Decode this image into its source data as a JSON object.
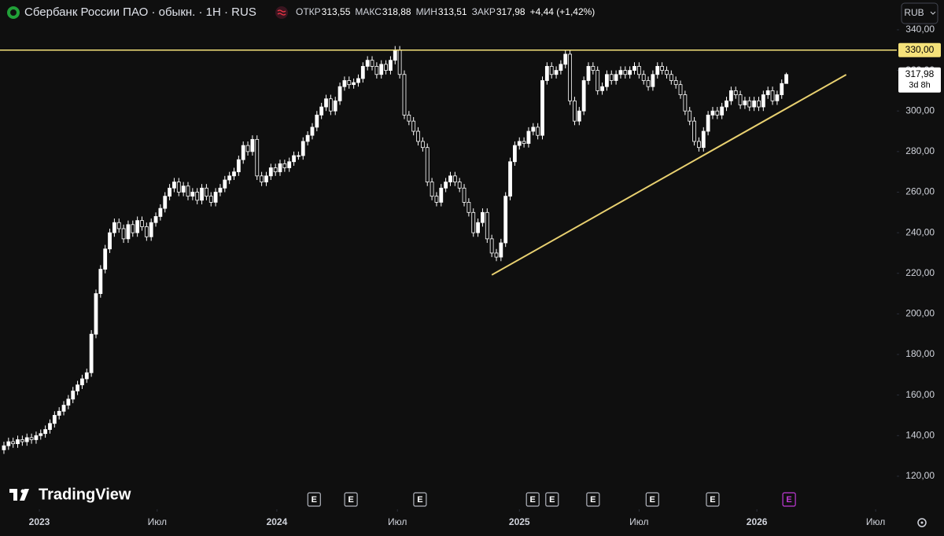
{
  "header": {
    "title": "Сбербанк России ПАО · обыкн. · 1H · RUS",
    "quote": [
      {
        "label": "ОТКР",
        "value": "313,55"
      },
      {
        "label": "МАКС",
        "value": "318,88"
      },
      {
        "label": "МИН",
        "value": "313,51"
      },
      {
        "label": "ЗАКР",
        "value": "317,98"
      }
    ],
    "change": "+4,44 (+1,42%)",
    "currency": "RUB",
    "brand": "TradingView"
  },
  "chart_data": {
    "type": "candlestick",
    "up_color": "#ffffff",
    "down_color": "#0f0f0f",
    "wick_color": "#ffffff",
    "open": [
      133,
      135,
      137,
      136,
      138,
      137,
      139,
      138,
      140,
      141,
      143,
      146,
      150,
      152,
      155,
      158,
      162,
      165,
      168,
      171,
      190,
      210,
      222,
      232,
      240,
      245,
      242,
      237,
      244,
      240,
      246,
      243,
      238,
      245,
      248,
      252,
      258,
      262,
      265,
      260,
      263,
      258,
      260,
      256,
      262,
      258,
      255,
      260,
      262,
      266,
      268,
      270,
      276,
      283,
      280,
      286,
      268,
      265,
      268,
      272,
      270,
      274,
      272,
      275,
      278,
      278,
      285,
      288,
      292,
      298,
      302,
      306,
      300,
      305,
      312,
      315,
      313,
      314,
      316,
      322,
      325,
      322,
      318,
      323,
      320,
      325,
      330,
      318,
      298,
      295,
      290,
      285,
      282,
      265,
      258,
      255,
      262,
      265,
      268,
      265,
      262,
      255,
      250,
      240,
      245,
      250,
      237,
      230,
      228,
      235,
      258,
      275,
      283,
      285,
      284,
      290,
      292,
      288,
      315,
      322,
      318,
      320,
      323,
      328,
      305,
      295,
      300,
      315,
      322,
      320,
      310,
      312,
      318,
      315,
      318,
      320,
      318,
      320,
      322,
      318,
      315,
      312,
      318,
      322,
      320,
      318,
      315,
      313,
      308,
      300,
      295,
      285,
      282,
      290,
      298,
      300,
      298,
      302,
      305,
      310,
      308,
      303,
      305,
      302,
      305,
      302,
      308,
      310,
      305,
      308,
      313.55
    ],
    "high": [
      137,
      139,
      139,
      140,
      140,
      141,
      141,
      142,
      143,
      145,
      148,
      152,
      154,
      157,
      160,
      164,
      167,
      170,
      173,
      192,
      212,
      224,
      234,
      242,
      247,
      247,
      244,
      246,
      246,
      248,
      248,
      245,
      247,
      250,
      254,
      260,
      264,
      267,
      267,
      265,
      265,
      262,
      262,
      264,
      264,
      260,
      262,
      264,
      268,
      270,
      272,
      278,
      285,
      285,
      288,
      288,
      270,
      270,
      274,
      274,
      276,
      276,
      277,
      280,
      280,
      287,
      290,
      294,
      300,
      304,
      308,
      308,
      307,
      314,
      317,
      317,
      316,
      318,
      324,
      327,
      327,
      324,
      325,
      325,
      327,
      332,
      332,
      320,
      300,
      297,
      292,
      287,
      284,
      267,
      260,
      264,
      267,
      270,
      270,
      267,
      264,
      257,
      252,
      247,
      252,
      252,
      239,
      232,
      237,
      260,
      277,
      285,
      287,
      287,
      292,
      294,
      294,
      317,
      324,
      324,
      322,
      325,
      330,
      330,
      307,
      302,
      317,
      324,
      324,
      322,
      314,
      320,
      320,
      320,
      322,
      322,
      322,
      324,
      324,
      320,
      317,
      320,
      324,
      324,
      322,
      320,
      317,
      315,
      310,
      302,
      297,
      287,
      292,
      300,
      302,
      302,
      304,
      307,
      312,
      312,
      310,
      307,
      307,
      307,
      307,
      310,
      312,
      312,
      310,
      315.55,
      318.88
    ],
    "low": [
      131,
      133,
      134,
      134,
      135,
      135,
      136,
      136,
      138,
      139,
      141,
      144,
      148,
      150,
      153,
      156,
      160,
      163,
      166,
      169,
      188,
      208,
      220,
      230,
      238,
      240,
      235,
      235,
      238,
      238,
      241,
      236,
      236,
      243,
      246,
      250,
      256,
      260,
      258,
      258,
      256,
      256,
      254,
      254,
      256,
      253,
      253,
      258,
      260,
      264,
      266,
      268,
      274,
      278,
      278,
      266,
      263,
      263,
      266,
      268,
      268,
      270,
      270,
      273,
      276,
      276,
      283,
      286,
      290,
      296,
      300,
      298,
      298,
      303,
      310,
      311,
      311,
      312,
      314,
      320,
      320,
      316,
      316,
      318,
      318,
      323,
      316,
      296,
      293,
      288,
      283,
      280,
      263,
      256,
      253,
      253,
      260,
      263,
      263,
      260,
      253,
      248,
      238,
      238,
      243,
      235,
      228,
      226,
      226,
      233,
      256,
      273,
      281,
      282,
      282,
      288,
      286,
      286,
      313,
      316,
      316,
      318,
      321,
      303,
      293,
      293,
      298,
      313,
      318,
      308,
      308,
      310,
      313,
      313,
      316,
      316,
      316,
      318,
      316,
      313,
      310,
      310,
      316,
      318,
      316,
      313,
      311,
      306,
      298,
      293,
      283,
      280,
      280,
      288,
      296,
      296,
      296,
      300,
      303,
      306,
      301,
      301,
      300,
      300,
      300,
      300,
      306,
      303,
      303,
      306,
      313.51
    ],
    "close": [
      135,
      137,
      136,
      138,
      137,
      139,
      138,
      140,
      141,
      143,
      146,
      150,
      152,
      155,
      158,
      162,
      165,
      168,
      171,
      190,
      210,
      222,
      232,
      240,
      245,
      242,
      237,
      244,
      240,
      246,
      243,
      238,
      245,
      248,
      252,
      258,
      262,
      265,
      260,
      263,
      258,
      260,
      256,
      262,
      258,
      255,
      260,
      262,
      266,
      268,
      270,
      276,
      283,
      280,
      286,
      268,
      265,
      268,
      272,
      270,
      274,
      272,
      275,
      278,
      278,
      285,
      288,
      292,
      298,
      302,
      306,
      300,
      305,
      312,
      315,
      313,
      314,
      316,
      322,
      325,
      322,
      318,
      323,
      320,
      325,
      330,
      318,
      298,
      295,
      290,
      285,
      282,
      265,
      258,
      255,
      262,
      265,
      268,
      265,
      262,
      255,
      250,
      240,
      245,
      250,
      237,
      230,
      228,
      235,
      258,
      275,
      283,
      285,
      284,
      290,
      292,
      288,
      315,
      322,
      318,
      320,
      323,
      328,
      305,
      295,
      300,
      315,
      322,
      320,
      310,
      312,
      318,
      315,
      318,
      320,
      318,
      320,
      322,
      318,
      315,
      312,
      318,
      322,
      320,
      318,
      315,
      313,
      308,
      300,
      295,
      285,
      282,
      290,
      298,
      300,
      298,
      302,
      305,
      310,
      308,
      303,
      305,
      302,
      305,
      302,
      308,
      310,
      305,
      308,
      313.55,
      317.98
    ],
    "xlim": [
      -0.85,
      194
    ],
    "xticks": [
      {
        "value": 7.7,
        "label": "2023"
      },
      {
        "value": 33.3,
        "label": "Июл"
      },
      {
        "value": 59.3,
        "label": "2024"
      },
      {
        "value": 85.5,
        "label": "Июл"
      },
      {
        "value": 112,
        "label": "2025"
      },
      {
        "value": 138,
        "label": "Июл"
      },
      {
        "value": 163.6,
        "label": "2026"
      },
      {
        "value": 189.4,
        "label": "Июл"
      }
    ],
    "ylim": [
      103.7,
      354.7
    ],
    "yticks": [
      {
        "value": 120,
        "label": "120,00"
      },
      {
        "value": 140,
        "label": "140,00"
      },
      {
        "value": 160,
        "label": "160,00"
      },
      {
        "value": 180,
        "label": "180,00"
      },
      {
        "value": 200,
        "label": "200,00"
      },
      {
        "value": 220,
        "label": "220,00"
      },
      {
        "value": 240,
        "label": "240,00"
      },
      {
        "value": 260,
        "label": "260,00"
      },
      {
        "value": 280,
        "label": "280,00"
      },
      {
        "value": 300,
        "label": "300,00"
      },
      {
        "value": 320,
        "label": "320,00"
      },
      {
        "value": 340,
        "label": "340,00"
      }
    ],
    "grid": false,
    "hline": {
      "value": 330,
      "label": "330,00",
      "color": "#f5e27a"
    },
    "trendline": {
      "x": [
        106,
        183
      ],
      "y": [
        219.2,
        317.9
      ],
      "color": "#e8d070"
    },
    "last_price": {
      "value": 317.98,
      "label": "317,98",
      "timer": "3d 8h"
    },
    "earnings": [
      {
        "x": 67.4,
        "label": "E"
      },
      {
        "x": 75.4,
        "label": "E"
      },
      {
        "x": 90.4,
        "label": "E"
      },
      {
        "x": 114.9,
        "label": "E"
      },
      {
        "x": 119.1,
        "label": "E"
      },
      {
        "x": 128,
        "label": "E"
      },
      {
        "x": 140.9,
        "label": "E"
      },
      {
        "x": 154,
        "label": "E"
      },
      {
        "x": 170.6,
        "label": "E",
        "color": "#c03ad6"
      }
    ]
  }
}
